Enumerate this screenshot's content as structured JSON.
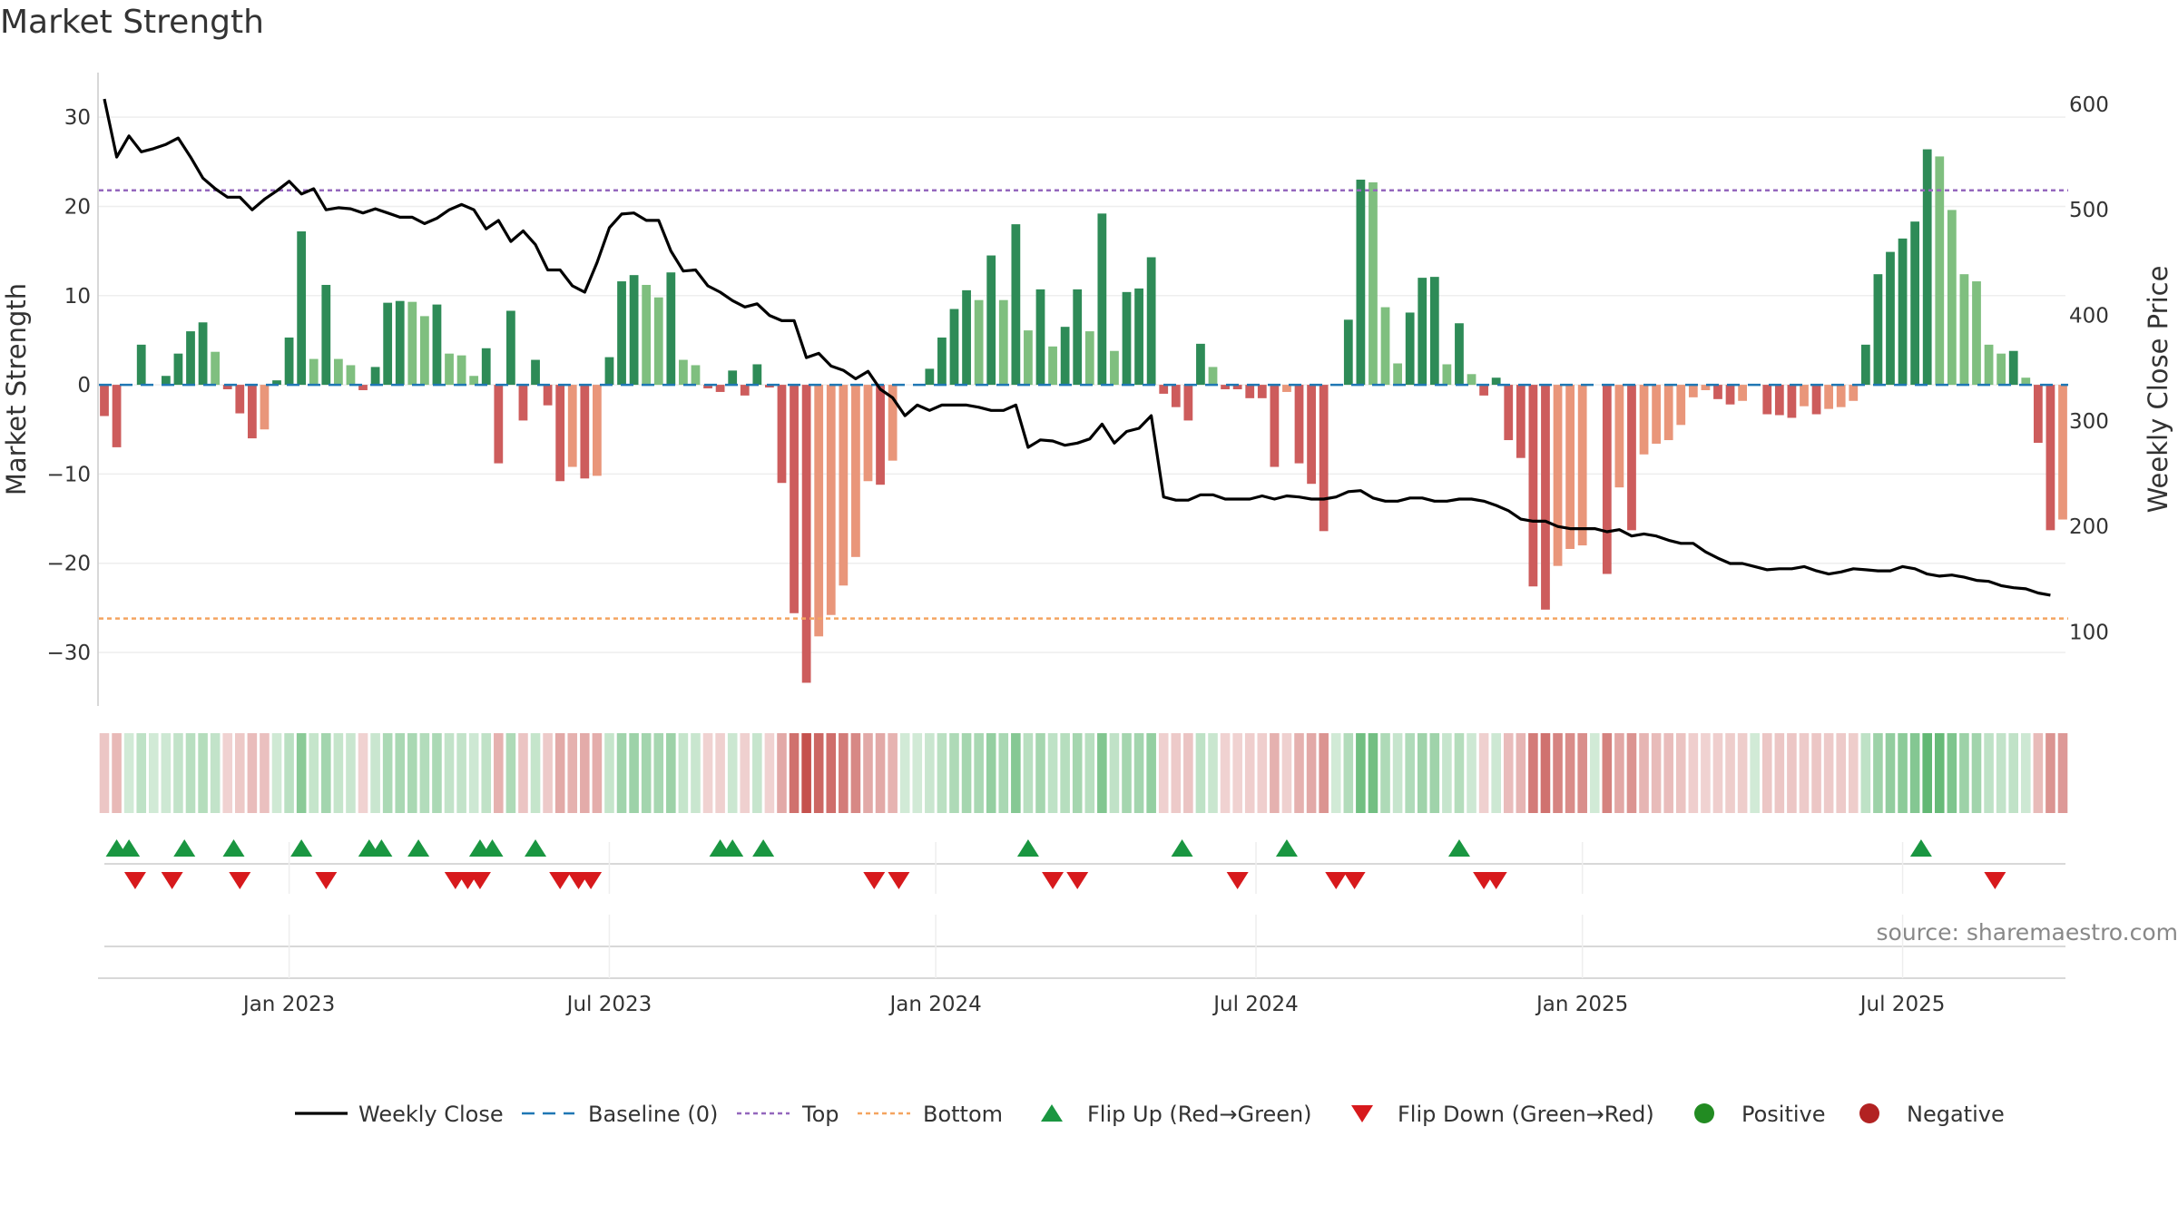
{
  "chart_data": {
    "type": "bar",
    "title": "Market Strength",
    "source": "source: sharemaestro.com",
    "ylabel": "Market Strength",
    "ylabel_right": "Weekly Close Price",
    "ylim": [
      -36,
      35
    ],
    "ylim_right": [
      30,
      630
    ],
    "yticks": [
      30,
      20,
      10,
      0,
      -10,
      -20,
      -30
    ],
    "yticks_right": [
      600,
      500,
      400,
      300,
      200,
      100
    ],
    "xticks": [
      "Jan 2023",
      "Jul 2023",
      "Jan 2024",
      "Jul 2024",
      "Jan 2025",
      "Jul 2025"
    ],
    "xtick_weeks": [
      15,
      41,
      67.5,
      93.5,
      120,
      146
    ],
    "top_threshold": 21.8,
    "bottom_threshold": -26.2,
    "colors": {
      "pos_strong": "#2e8b57",
      "pos_light": "#7fbf7f",
      "neg_strong": "#cd5c5c",
      "neg_light": "#e9967a",
      "close": "#000000",
      "baseline": "#1f77b4",
      "top": "#9467bd",
      "bottom": "#f4a460",
      "flip_up": "#1a9641",
      "flip_down": "#d7191c",
      "positive": "#228b22",
      "negative": "#b22222"
    },
    "strength": [
      -3.5,
      -7,
      0,
      4.5,
      0,
      1,
      3.5,
      6,
      7,
      3.7,
      -0.5,
      -3.2,
      -6,
      -5,
      0.5,
      5.3,
      17.2,
      2.9,
      11.2,
      2.9,
      2.2,
      -0.6,
      2,
      9.2,
      9.4,
      9.3,
      7.7,
      9,
      3.5,
      3.3,
      1,
      4.1,
      -8.8,
      8.3,
      -4,
      2.8,
      -2.3,
      -10.8,
      -9.2,
      -10.5,
      -10.2,
      3.1,
      11.6,
      12.3,
      11.2,
      9.8,
      12.6,
      2.8,
      2.2,
      -0.4,
      -0.8,
      1.6,
      -1.2,
      2.3,
      -0.3,
      -11,
      -25.6,
      -33.4,
      -28.2,
      -25.8,
      -22.5,
      -19.3,
      -10.8,
      -11.2,
      -8.5,
      0,
      0,
      1.8,
      5.3,
      8.5,
      10.6,
      9.5,
      14.5,
      9.5,
      18,
      6.1,
      10.7,
      4.3,
      6.5,
      10.7,
      6,
      19.2,
      3.8,
      10.4,
      10.8,
      14.3,
      -1,
      -2.5,
      -4,
      4.6,
      2,
      -0.5,
      -0.5,
      -1.5,
      -1.5,
      -9.2,
      -0.8,
      -8.8,
      -11.1,
      -16.4,
      0,
      7.3,
      23,
      22.7,
      8.7,
      2.4,
      8.1,
      12,
      12.1,
      2.3,
      6.9,
      1.2,
      -1.2,
      0.8,
      -6.2,
      -8.2,
      -22.6,
      -25.2,
      -20.3,
      -18.4,
      -18,
      0,
      -21.2,
      -11.5,
      -16.3,
      -7.8,
      -6.6,
      -6.2,
      -4.5,
      -1.4,
      -0.6,
      -1.6,
      -2.2,
      -1.8,
      0,
      -3.3,
      -3.4,
      -3.7,
      -2.4,
      -3.3,
      -2.7,
      -2.5,
      -1.8,
      4.5,
      12.4,
      14.9,
      16.4,
      18.3,
      26.4,
      25.6,
      19.6,
      12.4,
      11.6,
      4.5,
      3.5,
      3.8,
      0.8,
      -6.5,
      -16.3,
      -15.1
    ],
    "weekly_close": [
      605,
      550,
      570,
      555,
      558,
      562,
      568,
      550,
      530,
      520,
      512,
      512,
      500,
      510,
      518,
      527,
      515,
      520,
      500,
      502,
      501,
      497,
      501,
      497,
      493,
      493,
      487,
      492,
      500,
      505,
      500,
      482,
      490,
      470,
      480,
      467,
      443,
      443,
      428,
      422,
      450,
      483,
      496,
      497,
      490,
      490,
      461,
      442,
      443,
      428,
      422,
      414,
      408,
      411,
      400,
      395,
      395,
      360,
      364,
      352,
      348,
      340,
      347,
      330,
      322,
      305,
      315,
      310,
      315,
      315,
      315,
      313,
      310,
      310,
      315,
      275,
      282,
      281,
      277,
      279,
      283,
      297,
      279,
      290,
      293,
      305,
      228,
      225,
      225,
      230,
      230,
      226,
      226,
      226,
      229,
      226,
      229,
      228,
      226,
      226,
      228,
      233,
      234,
      227,
      224,
      224,
      227,
      227,
      224,
      224,
      226,
      226,
      224,
      220,
      215,
      207,
      205,
      205,
      200,
      198,
      198,
      198,
      195,
      197,
      191,
      193,
      191,
      187,
      184,
      184,
      176,
      170,
      165,
      165,
      162,
      159,
      160,
      160,
      162,
      158,
      155,
      157,
      160,
      159,
      158,
      158,
      162,
      160,
      155,
      153,
      154,
      152,
      149,
      148,
      144,
      142,
      141,
      137,
      135
    ],
    "flips_up": [
      1,
      2,
      6.5,
      10.5,
      16,
      21.5,
      22.5,
      25.5,
      30.5,
      31.5,
      35,
      50,
      51,
      53.5,
      75,
      87.5,
      96,
      110,
      147.5
    ],
    "flips_down": [
      2.5,
      5.5,
      11,
      18,
      28.5,
      29.5,
      30.5,
      37,
      38.5,
      39.5,
      62.5,
      64.5,
      77,
      79,
      92,
      100,
      101.5,
      112,
      113,
      153.5
    ],
    "legend": [
      {
        "key": "close",
        "label": "Weekly Close"
      },
      {
        "key": "baseline",
        "label": "Baseline (0)"
      },
      {
        "key": "top",
        "label": "Top"
      },
      {
        "key": "bottom",
        "label": "Bottom"
      },
      {
        "key": "flip_up",
        "label": "Flip Up (Red→Green)"
      },
      {
        "key": "flip_down",
        "label": "Flip Down (Green→Red)"
      },
      {
        "key": "positive",
        "label": "Positive"
      },
      {
        "key": "negative",
        "label": "Negative"
      }
    ]
  }
}
